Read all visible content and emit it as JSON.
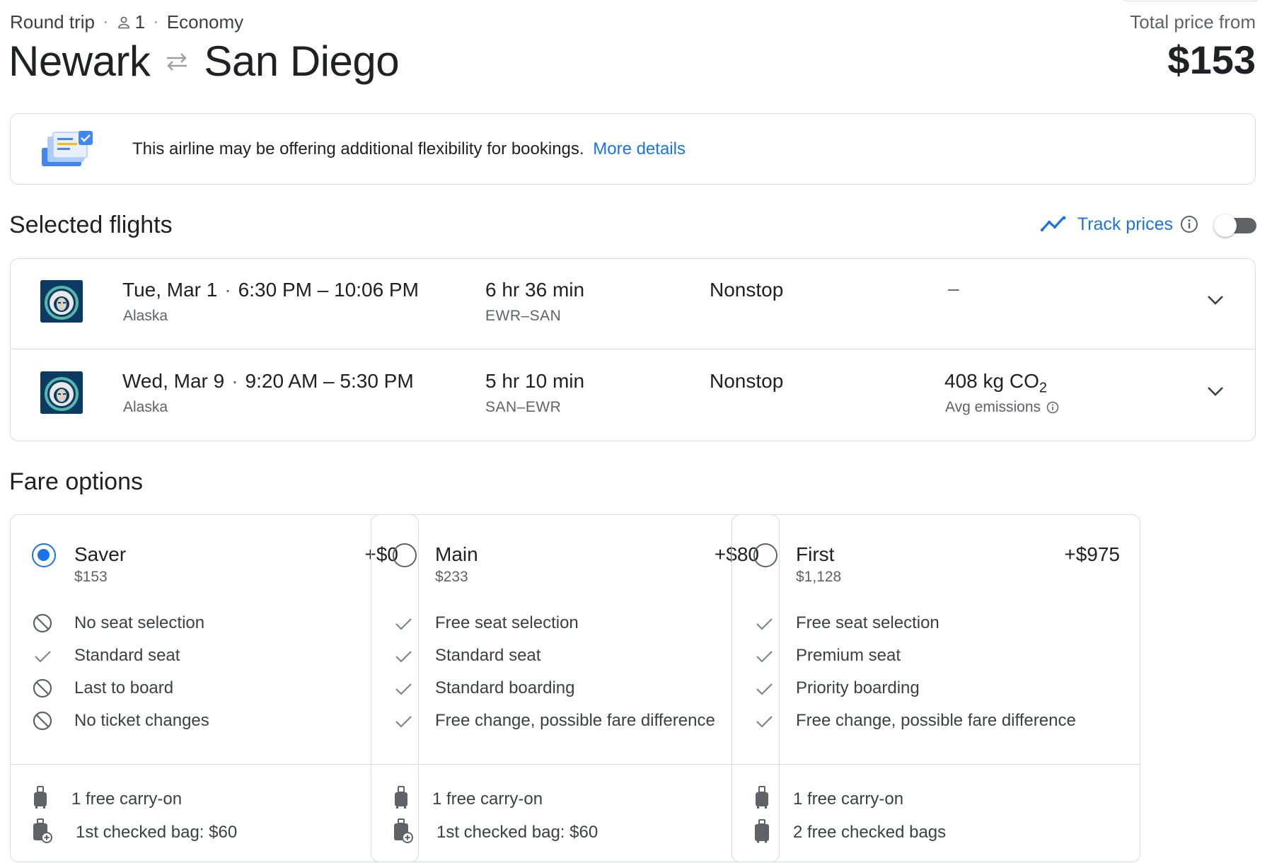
{
  "trip": {
    "type": "Round trip",
    "passengers": "1",
    "cabin": "Economy",
    "origin": "Newark",
    "destination": "San Diego"
  },
  "price": {
    "label": "Total price from",
    "value": "$153"
  },
  "notice": {
    "text": "This airline may be offering additional flexibility for bookings.",
    "link": "More details",
    "icon": "ticket-check-icon"
  },
  "selected_flights": {
    "title": "Selected flights",
    "track_label": "Track prices",
    "track_on": false,
    "flights": [
      {
        "date": "Tue, Mar 1",
        "time": "6:30 PM – 10:06 PM",
        "airline": "Alaska",
        "duration": "6 hr 36 min",
        "airports": "EWR–SAN",
        "stops": "Nonstop",
        "emissions": "–"
      },
      {
        "date": "Wed, Mar 9",
        "time": "9:20 AM – 5:30 PM",
        "airline": "Alaska",
        "duration": "5 hr 10 min",
        "airports": "SAN–EWR",
        "stops": "Nonstop",
        "emissions_value": "408 kg CO",
        "emissions_sub": "2",
        "emissions_label": "Avg emissions"
      }
    ]
  },
  "fare_options": {
    "title": "Fare options",
    "fares": [
      {
        "name": "Saver",
        "price": "$153",
        "delta": "+$0",
        "selected": true,
        "features": [
          {
            "icon": "block-icon",
            "text": "No seat selection"
          },
          {
            "icon": "check-icon",
            "text": "Standard seat"
          },
          {
            "icon": "block-icon",
            "text": "Last to board"
          },
          {
            "icon": "block-icon",
            "text": "No ticket changes"
          }
        ],
        "bags": [
          {
            "icon": "carry-on-icon",
            "text": "1 free carry-on"
          },
          {
            "icon": "checked-bag-paid-icon",
            "text": "1st checked bag: $60"
          }
        ]
      },
      {
        "name": "Main",
        "price": "$233",
        "delta": "+$80",
        "selected": false,
        "features": [
          {
            "icon": "check-icon",
            "text": "Free seat selection"
          },
          {
            "icon": "check-icon",
            "text": "Standard seat"
          },
          {
            "icon": "check-icon",
            "text": "Standard boarding"
          },
          {
            "icon": "check-icon",
            "text": "Free change, possible fare difference"
          }
        ],
        "bags": [
          {
            "icon": "carry-on-icon",
            "text": "1 free carry-on"
          },
          {
            "icon": "checked-bag-paid-icon",
            "text": "1st checked bag: $60"
          }
        ]
      },
      {
        "name": "First",
        "price": "$1,128",
        "delta": "+$975",
        "selected": false,
        "features": [
          {
            "icon": "check-icon",
            "text": "Free seat selection"
          },
          {
            "icon": "check-icon",
            "text": "Premium seat"
          },
          {
            "icon": "check-icon",
            "text": "Priority boarding"
          },
          {
            "icon": "check-icon",
            "text": "Free change, possible fare difference"
          }
        ],
        "bags": [
          {
            "icon": "carry-on-icon",
            "text": "1 free carry-on"
          },
          {
            "icon": "checked-bag-icon",
            "text": "2 free checked bags"
          }
        ]
      }
    ]
  },
  "colors": {
    "accent": "#1a73e8",
    "text": "#202124",
    "muted": "#5f6368",
    "border": "#dadce0"
  }
}
